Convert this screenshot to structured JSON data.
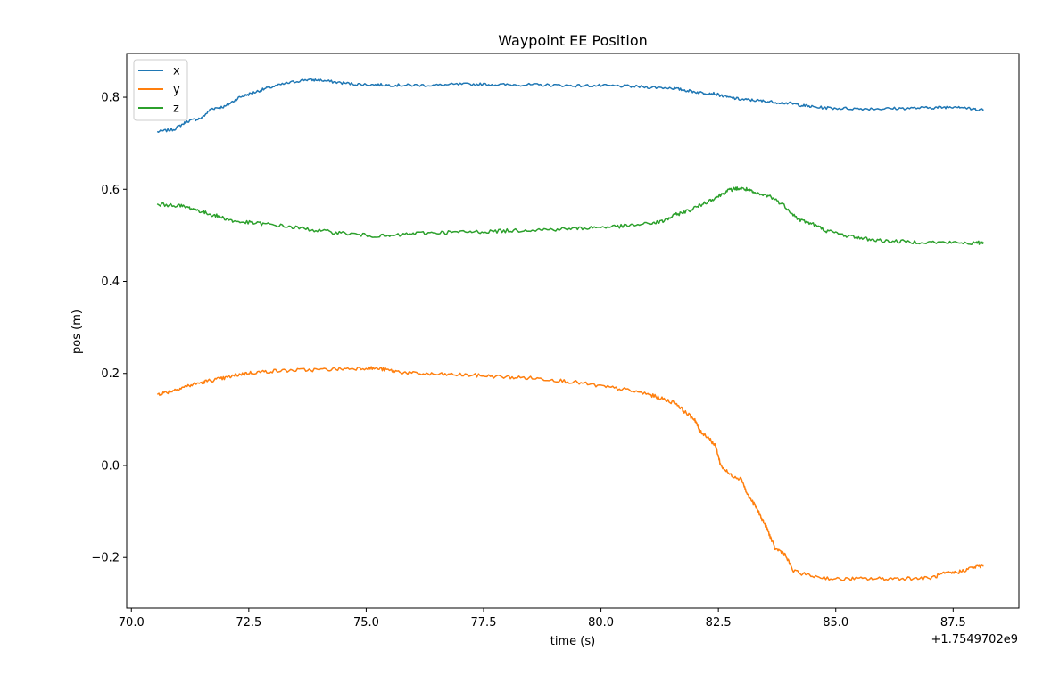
{
  "chart_data": {
    "type": "line",
    "title": "Waypoint EE Position",
    "xlabel": "time (s)",
    "ylabel": "pos (m)",
    "x_offset_label": "+1.7549702e9",
    "xlim": [
      69.9,
      88.9
    ],
    "ylim": [
      -0.31,
      0.895
    ],
    "xticks": [
      70.0,
      72.5,
      75.0,
      77.5,
      80.0,
      82.5,
      85.0,
      87.5
    ],
    "xtick_labels": [
      "70.0",
      "72.5",
      "75.0",
      "77.5",
      "80.0",
      "82.5",
      "85.0",
      "87.5"
    ],
    "yticks": [
      -0.2,
      0.0,
      0.2,
      0.4,
      0.6,
      0.8
    ],
    "ytick_labels": [
      "−0.2",
      "0.0",
      "0.2",
      "0.4",
      "0.6",
      "0.8"
    ],
    "grid": false,
    "legend_position": "upper-left",
    "series": [
      {
        "name": "x",
        "color": "#1f77b4",
        "x": [
          70.55,
          70.9,
          71.2,
          71.5,
          71.7,
          72.0,
          72.3,
          72.6,
          72.9,
          73.3,
          73.7,
          74.0,
          74.4,
          74.8,
          75.2,
          75.6,
          76.0,
          76.5,
          77.0,
          77.5,
          78.0,
          78.5,
          79.0,
          79.5,
          80.0,
          80.5,
          81.0,
          81.5,
          81.8,
          82.1,
          82.4,
          82.7,
          83.0,
          83.3,
          83.6,
          84.0,
          84.3,
          84.6,
          85.0,
          85.5,
          86.0,
          86.5,
          87.0,
          87.3,
          87.6,
          87.9,
          88.15
        ],
        "y": [
          0.725,
          0.73,
          0.748,
          0.755,
          0.775,
          0.78,
          0.8,
          0.81,
          0.82,
          0.83,
          0.838,
          0.837,
          0.832,
          0.828,
          0.827,
          0.826,
          0.826,
          0.826,
          0.828,
          0.828,
          0.827,
          0.827,
          0.826,
          0.825,
          0.825,
          0.824,
          0.822,
          0.82,
          0.815,
          0.81,
          0.808,
          0.8,
          0.795,
          0.793,
          0.79,
          0.787,
          0.782,
          0.778,
          0.776,
          0.775,
          0.775,
          0.776,
          0.777,
          0.778,
          0.78,
          0.774,
          0.773
        ]
      },
      {
        "name": "y",
        "color": "#ff7f0e",
        "x": [
          70.55,
          70.8,
          71.1,
          71.4,
          71.7,
          72.0,
          72.3,
          72.6,
          73.0,
          73.5,
          74.0,
          74.5,
          75.0,
          75.3,
          75.6,
          76.0,
          76.5,
          77.0,
          77.5,
          78.0,
          78.5,
          79.0,
          79.5,
          80.0,
          80.5,
          81.0,
          81.3,
          81.6,
          81.8,
          82.0,
          82.1,
          82.3,
          82.45,
          82.55,
          82.75,
          83.0,
          83.1,
          83.3,
          83.45,
          83.55,
          83.7,
          83.9,
          84.1,
          84.5,
          85.0,
          85.5,
          86.0,
          86.5,
          87.0,
          87.3,
          87.6,
          87.9,
          88.15
        ],
        "y": [
          0.155,
          0.16,
          0.17,
          0.178,
          0.185,
          0.19,
          0.198,
          0.202,
          0.205,
          0.207,
          0.208,
          0.21,
          0.212,
          0.21,
          0.205,
          0.2,
          0.198,
          0.197,
          0.195,
          0.192,
          0.19,
          0.186,
          0.18,
          0.172,
          0.165,
          0.155,
          0.145,
          0.135,
          0.115,
          0.1,
          0.075,
          0.06,
          0.04,
          0.0,
          -0.02,
          -0.03,
          -0.06,
          -0.09,
          -0.12,
          -0.14,
          -0.18,
          -0.19,
          -0.23,
          -0.24,
          -0.247,
          -0.246,
          -0.246,
          -0.245,
          -0.245,
          -0.235,
          -0.232,
          -0.222,
          -0.218
        ]
      },
      {
        "name": "z",
        "color": "#2ca02c",
        "x": [
          70.55,
          71.0,
          71.3,
          71.6,
          71.9,
          72.2,
          72.6,
          73.0,
          73.5,
          74.0,
          74.5,
          75.0,
          75.5,
          76.0,
          76.5,
          77.0,
          77.5,
          78.0,
          78.5,
          79.0,
          79.5,
          80.0,
          80.5,
          81.0,
          81.3,
          81.6,
          81.9,
          82.2,
          82.5,
          82.7,
          82.9,
          83.1,
          83.3,
          83.6,
          83.9,
          84.2,
          84.5,
          84.8,
          85.2,
          85.6,
          86.0,
          86.5,
          87.0,
          87.5,
          88.0,
          88.15
        ],
        "y": [
          0.567,
          0.565,
          0.558,
          0.548,
          0.54,
          0.53,
          0.527,
          0.523,
          0.517,
          0.51,
          0.505,
          0.5,
          0.498,
          0.504,
          0.506,
          0.507,
          0.508,
          0.51,
          0.512,
          0.513,
          0.515,
          0.518,
          0.52,
          0.525,
          0.53,
          0.545,
          0.555,
          0.57,
          0.585,
          0.597,
          0.602,
          0.6,
          0.59,
          0.585,
          0.565,
          0.535,
          0.525,
          0.51,
          0.5,
          0.493,
          0.488,
          0.486,
          0.485,
          0.484,
          0.483,
          0.485
        ]
      }
    ]
  }
}
